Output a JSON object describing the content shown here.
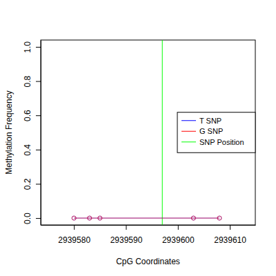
{
  "chart_data": {
    "type": "line",
    "x_label": "CpG Coordinates",
    "y_label": "Methylation Frequency",
    "x": [
      2939580,
      2939583,
      2939585,
      2939603,
      2939608
    ],
    "series": [
      {
        "name": "T SNP",
        "color": "#0000ff",
        "values": [
          0,
          0,
          0,
          0,
          0
        ],
        "marker": "circle",
        "line_style": "solid"
      },
      {
        "name": "G SNP",
        "color": "#ff0000",
        "values": [
          0,
          0,
          0,
          0,
          0
        ],
        "marker": "circle",
        "line_style": "solid"
      }
    ],
    "vlines": [
      {
        "name": "SNP Position",
        "color": "#00ff00",
        "x": 2939597
      }
    ],
    "xlim": [
      2939573.6,
      2939614.9
    ],
    "xticks": [
      2939580,
      2939590,
      2939600,
      2939610
    ],
    "ylim": [
      -0.04,
      1.04
    ],
    "yticks": [
      {
        "value": 0,
        "label": "0.0"
      },
      0.2,
      0.4,
      0.6,
      0.8,
      {
        "value": 1,
        "label": "1.0"
      }
    ],
    "grid": false,
    "legend": "right"
  }
}
